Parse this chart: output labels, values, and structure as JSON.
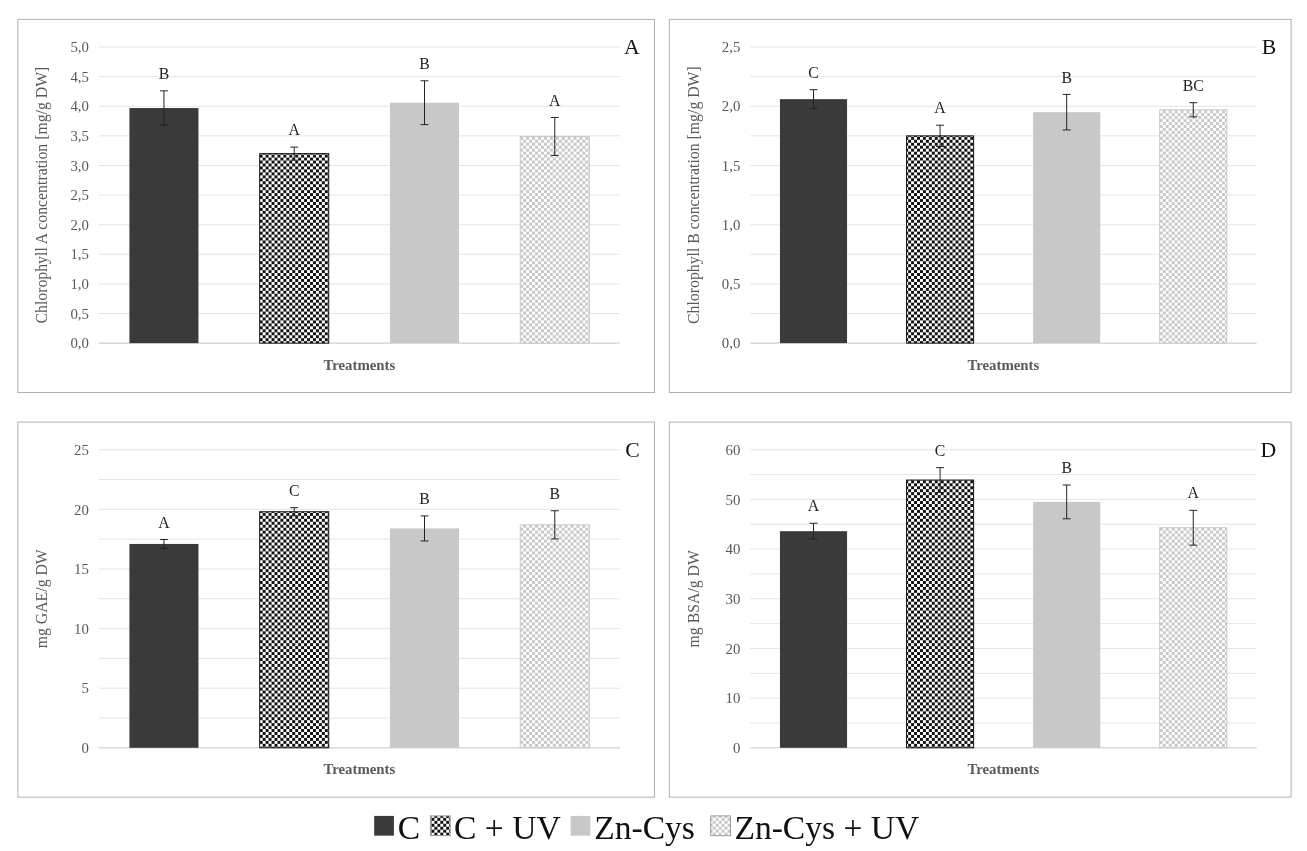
{
  "chart_data": [
    {
      "type": "bar",
      "title": "A",
      "xlabel": "Treatments",
      "ylabel": "Chlorophyll A concentration [mg/g DW]",
      "categories": [
        null
      ],
      "ylim": [
        0,
        5
      ],
      "yticks": [
        {
          "value": 0,
          "label": "0,0"
        },
        {
          "value": 0.5,
          "label": "0,5"
        },
        {
          "value": 1,
          "label": "1,0"
        },
        {
          "value": 1.5,
          "label": "1,5"
        },
        {
          "value": 2,
          "label": "2,0"
        },
        {
          "value": 2.5,
          "label": "2,5"
        },
        {
          "value": 3,
          "label": "3,0"
        },
        {
          "value": 3.5,
          "label": "3,5"
        },
        {
          "value": 4,
          "label": "4,0"
        },
        {
          "value": 4.5,
          "label": "4,5"
        },
        {
          "value": 5,
          "label": "5,0"
        }
      ],
      "grid": "y",
      "series": [
        {
          "color": "#3a3a3a",
          "values": [
            3.97
          ],
          "errors": [
            0.29
          ],
          "value_labels": [
            "B"
          ]
        },
        {
          "color": "#111111",
          "values": [
            3.2
          ],
          "errors": [
            0.11
          ],
          "value_labels": [
            "A"
          ]
        },
        {
          "color": "#c8c8c8",
          "values": [
            4.06
          ],
          "errors": [
            0.37
          ],
          "value_labels": [
            "B"
          ]
        },
        {
          "color": "#c8c8c8",
          "values": [
            3.49
          ],
          "errors": [
            0.32
          ],
          "value_labels": [
            "A"
          ]
        }
      ]
    },
    {
      "type": "bar",
      "title": "B",
      "xlabel": "Treatments",
      "ylabel": "Chlorophyll B concentration [mg/g DW]",
      "categories": [
        null
      ],
      "ylim": [
        0,
        2.5
      ],
      "yticks": [
        {
          "value": 0,
          "label": "0,0"
        },
        {
          "value": 0.25,
          "label": null
        },
        {
          "value": 0.5,
          "label": "0,5"
        },
        {
          "value": 0.75,
          "label": null
        },
        {
          "value": 1,
          "label": "1,0"
        },
        {
          "value": 1.25,
          "label": null
        },
        {
          "value": 1.5,
          "label": "1,5"
        },
        {
          "value": 1.75,
          "label": null
        },
        {
          "value": 2,
          "label": "2,0"
        },
        {
          "value": 2.25,
          "label": null
        },
        {
          "value": 2.5,
          "label": "2,5"
        }
      ],
      "grid": "y",
      "series": [
        {
          "color": "#3a3a3a",
          "values": [
            2.06
          ],
          "errors": [
            0.08
          ],
          "value_labels": [
            "C"
          ]
        },
        {
          "color": "#111111",
          "values": [
            1.75
          ],
          "errors": [
            0.09
          ],
          "value_labels": [
            "A"
          ]
        },
        {
          "color": "#c8c8c8",
          "values": [
            1.95
          ],
          "errors": [
            0.15
          ],
          "value_labels": [
            "B"
          ]
        },
        {
          "color": "#c8c8c8",
          "values": [
            1.97
          ],
          "errors": [
            0.06
          ],
          "value_labels": [
            "BC"
          ]
        }
      ]
    },
    {
      "type": "bar",
      "title": "C",
      "xlabel": "Treatments",
      "ylabel": "mg GAE/g DW",
      "categories": [
        null
      ],
      "ylim": [
        0,
        25
      ],
      "yticks": [
        0,
        {
          "value": 2.5,
          "label": null
        },
        5,
        {
          "value": 7.5,
          "label": null
        },
        10,
        {
          "value": 12.5,
          "label": null
        },
        15,
        {
          "value": 17.5,
          "label": null
        },
        20,
        {
          "value": 22.5,
          "label": null
        },
        25
      ],
      "grid": "y",
      "series": [
        {
          "color": "#3a3a3a",
          "values": [
            17.1
          ],
          "errors": [
            0.37
          ],
          "value_labels": [
            "A"
          ]
        },
        {
          "color": "#111111",
          "values": [
            19.8
          ],
          "errors": [
            0.34
          ],
          "value_labels": [
            "C"
          ]
        },
        {
          "color": "#c8c8c8",
          "values": [
            18.4
          ],
          "errors": [
            1.05
          ],
          "value_labels": [
            "B"
          ]
        },
        {
          "color": "#c8c8c8",
          "values": [
            18.7
          ],
          "errors": [
            1.18
          ],
          "value_labels": [
            "B"
          ]
        }
      ]
    },
    {
      "type": "bar",
      "title": "D",
      "xlabel": "Treatments",
      "ylabel": "mg BSA/g DW",
      "categories": [
        null
      ],
      "ylim": [
        0,
        60
      ],
      "yticks": [
        0,
        {
          "value": 5,
          "label": null
        },
        10,
        {
          "value": 15,
          "label": null
        },
        20,
        {
          "value": 25,
          "label": null
        },
        30,
        {
          "value": 35,
          "label": null
        },
        40,
        {
          "value": 45,
          "label": null
        },
        50,
        {
          "value": 55,
          "label": null
        },
        60
      ],
      "grid": "y",
      "legend": "bottom",
      "series": [
        {
          "name": "C",
          "color": "#3a3a3a",
          "values": [
            43.6
          ],
          "errors": [
            1.6
          ],
          "value_labels": [
            "A"
          ]
        },
        {
          "name": "C + UV",
          "color": "#111111",
          "values": [
            53.9
          ],
          "errors": [
            2.5
          ],
          "value_labels": [
            "C"
          ]
        },
        {
          "name": "Zn-Cys",
          "color": "#c8c8c8",
          "values": [
            49.5
          ],
          "errors": [
            3.4
          ],
          "value_labels": [
            "B"
          ]
        },
        {
          "name": "Zn-Cys + UV",
          "color": "#c8c8c8",
          "values": [
            44.3
          ],
          "errors": [
            3.5
          ],
          "value_labels": [
            "A"
          ]
        }
      ]
    }
  ]
}
